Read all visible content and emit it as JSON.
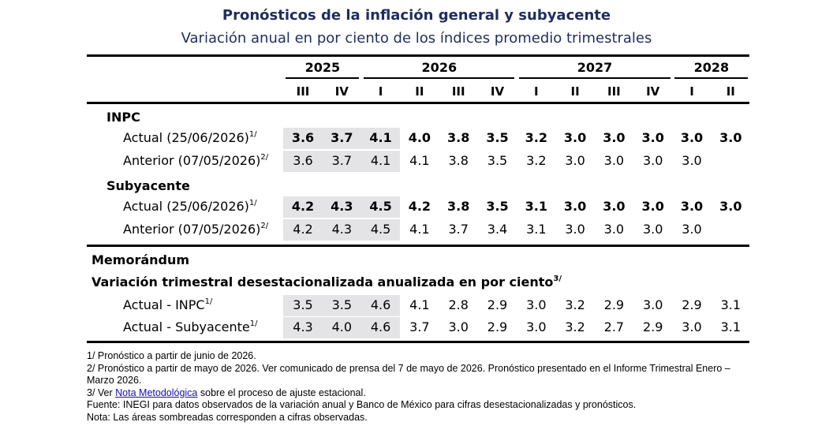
{
  "header": {
    "title": "Pronósticos de la inflación general y subyacente",
    "subtitle": "Variación anual en por ciento de los índices promedio trimestrales"
  },
  "table": {
    "years": [
      "2025",
      "2026",
      "2027",
      "2028"
    ],
    "quarters": [
      "III",
      "IV",
      "I",
      "II",
      "III",
      "IV",
      "I",
      "II",
      "III",
      "IV",
      "I",
      "II"
    ],
    "sections": [
      {
        "title": "INPC",
        "rows": [
          {
            "label": "Actual (25/06/2026)",
            "note": "1/",
            "values": [
              "3.6",
              "3.7",
              "4.1",
              "4.0",
              "3.8",
              "3.5",
              "3.2",
              "3.0",
              "3.0",
              "3.0",
              "3.0",
              "3.0"
            ]
          },
          {
            "label": "Anterior (07/05/2026)",
            "note": "2/",
            "values": [
              "3.6",
              "3.7",
              "4.1",
              "4.1",
              "3.8",
              "3.5",
              "3.2",
              "3.0",
              "3.0",
              "3.0",
              "3.0"
            ]
          }
        ]
      },
      {
        "title": "Subyacente",
        "rows": [
          {
            "label": "Actual (25/06/2026)",
            "note": "1/",
            "values": [
              "4.2",
              "4.3",
              "4.5",
              "4.2",
              "3.8",
              "3.5",
              "3.1",
              "3.0",
              "3.0",
              "3.0",
              "3.0",
              "3.0"
            ]
          },
          {
            "label": "Anterior (07/05/2026)",
            "note": "2/",
            "values": [
              "4.2",
              "4.3",
              "4.5",
              "4.1",
              "3.7",
              "3.4",
              "3.1",
              "3.0",
              "3.0",
              "3.0",
              "3.0"
            ]
          }
        ]
      }
    ],
    "memo": {
      "title": "Memorándum",
      "subtitle": "Variación trimestral desestacionalizada anualizada en por ciento",
      "note": "3/",
      "rows": [
        {
          "label": "Actual - INPC",
          "note": "1/",
          "values": [
            "3.5",
            "3.5",
            "4.6",
            "4.1",
            "2.8",
            "2.9",
            "3.0",
            "3.2",
            "2.9",
            "3.0",
            "2.9",
            "3.1"
          ]
        },
        {
          "label": "Actual - Subyacente",
          "note": "1/",
          "values": [
            "4.3",
            "4.0",
            "4.6",
            "3.7",
            "3.0",
            "2.9",
            "3.0",
            "3.2",
            "2.7",
            "2.9",
            "3.0",
            "3.1"
          ]
        }
      ]
    }
  },
  "footnotes": {
    "note1": "1/ Pronóstico a partir de junio de 2026.",
    "note2": "2/ Pronóstico a partir de mayo de 2026. Ver comunicado de prensa del 7 de mayo de 2026. Pronóstico presentado en el Informe Trimestral Enero – Marzo 2026.",
    "note3": {
      "prefix": "3/ Ver",
      "link": "Nota Metodológica",
      "suffix": "sobre el proceso de ajuste estacional."
    },
    "source": "Fuente: INEGI para datos observados de la variación anual y Banco de México para cifras desestacionalizadas y pronósticos.",
    "note": "Nota: Las áreas sombreadas corresponden a cifras observadas."
  }
}
